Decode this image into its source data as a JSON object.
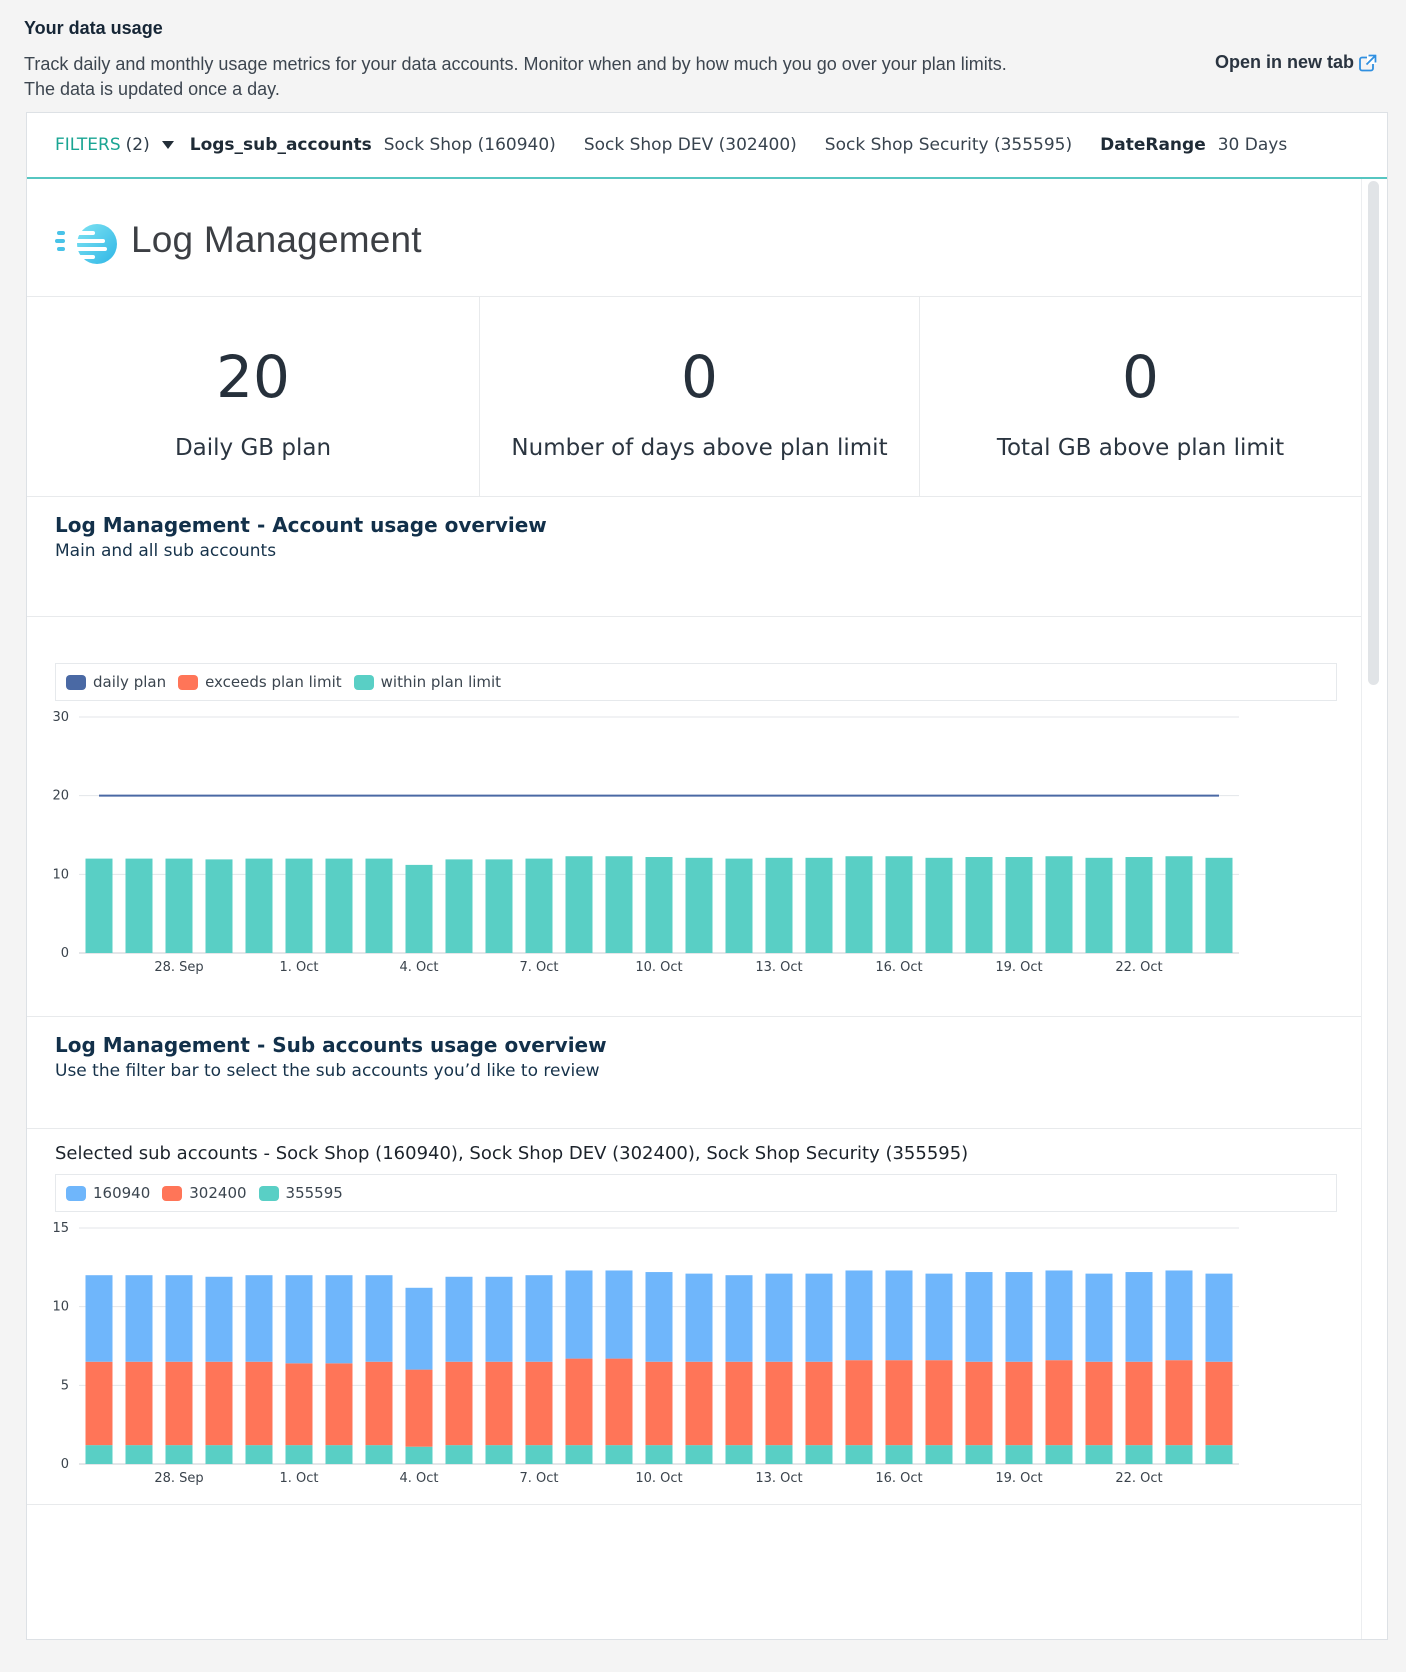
{
  "header": {
    "title": "Your data usage",
    "desc_line1": "Track daily and monthly usage metrics for your data accounts. Monitor when and by how much you go over your plan limits.",
    "desc_line2": "The data is updated once a day.",
    "open_tab": "Open in new tab"
  },
  "filters": {
    "label": "FILTERS",
    "count": "(2)",
    "key_accounts": "Logs_sub_accounts",
    "accounts": [
      "Sock Shop (160940)",
      "Sock Shop DEV (302400)",
      "Sock Shop Security (355595)"
    ],
    "key_date": "DateRange",
    "date_value": "30 Days"
  },
  "brand": {
    "name": "Log Management"
  },
  "kpis": [
    {
      "value": "20",
      "label": "Daily GB plan"
    },
    {
      "value": "0",
      "label": "Number of days above plan limit"
    },
    {
      "value": "0",
      "label": "Total GB above plan limit"
    }
  ],
  "sections": {
    "overview_title": "Log Management - Account usage overview",
    "overview_sub": "Main and all sub accounts",
    "sub_title": "Log Management - Sub accounts usage overview",
    "sub_sub": "Use the filter bar to select the sub accounts you’d like to review"
  },
  "colors": {
    "accent": "#1aa593",
    "daily_plan": "#4a69a4",
    "exceeds": "#ff7558",
    "within": "#59cfc5",
    "acct_160940": "#6fb6fb",
    "acct_302400": "#ff7558",
    "acct_355595": "#59cfc5"
  },
  "chart_data": [
    {
      "type": "bar",
      "legend": [
        "daily plan",
        "exceeds plan limit",
        "within plan limit"
      ],
      "ylim": [
        0,
        30
      ],
      "yticks": [
        "0",
        "10",
        "20",
        "30"
      ],
      "xtick_labels": [
        "28. Sep",
        "1. Oct",
        "4. Oct",
        "7. Oct",
        "10. Oct",
        "13. Oct",
        "16. Oct",
        "19. Oct",
        "22. Oct"
      ],
      "xtick_index": [
        2,
        5,
        8,
        11,
        14,
        17,
        20,
        23,
        26
      ],
      "daily_plan": 20,
      "series": [
        {
          "name": "within plan limit",
          "values": [
            12.0,
            12.0,
            12.0,
            11.9,
            12.0,
            12.0,
            12.0,
            12.0,
            11.2,
            11.9,
            11.9,
            12.0,
            12.3,
            12.3,
            12.2,
            12.1,
            12.0,
            12.1,
            12.1,
            12.3,
            12.3,
            12.1,
            12.2,
            12.2,
            12.3,
            12.1,
            12.2,
            12.3,
            12.1
          ]
        },
        {
          "name": "exceeds plan limit",
          "values": [
            0,
            0,
            0,
            0,
            0,
            0,
            0,
            0,
            0,
            0,
            0,
            0,
            0,
            0,
            0,
            0,
            0,
            0,
            0,
            0,
            0,
            0,
            0,
            0,
            0,
            0,
            0,
            0,
            0
          ]
        }
      ]
    },
    {
      "type": "bar",
      "title": "Selected sub accounts - Sock Shop (160940), Sock Shop DEV (302400), Sock Shop Security (355595)",
      "legend": [
        "160940",
        "302400",
        "355595"
      ],
      "ylim": [
        0,
        15
      ],
      "yticks": [
        "0",
        "5",
        "10",
        "15"
      ],
      "xtick_labels": [
        "28. Sep",
        "1. Oct",
        "4. Oct",
        "7. Oct",
        "10. Oct",
        "13. Oct",
        "16. Oct",
        "19. Oct",
        "22. Oct"
      ],
      "xtick_index": [
        2,
        5,
        8,
        11,
        14,
        17,
        20,
        23,
        26
      ],
      "series": [
        {
          "name": "355595",
          "values": [
            1.2,
            1.2,
            1.2,
            1.2,
            1.2,
            1.2,
            1.2,
            1.2,
            1.1,
            1.2,
            1.2,
            1.2,
            1.2,
            1.2,
            1.2,
            1.2,
            1.2,
            1.2,
            1.2,
            1.2,
            1.2,
            1.2,
            1.2,
            1.2,
            1.2,
            1.2,
            1.2,
            1.2,
            1.2
          ]
        },
        {
          "name": "302400",
          "values": [
            5.3,
            5.3,
            5.3,
            5.3,
            5.3,
            5.2,
            5.2,
            5.3,
            4.9,
            5.3,
            5.3,
            5.3,
            5.5,
            5.5,
            5.3,
            5.3,
            5.3,
            5.3,
            5.3,
            5.4,
            5.4,
            5.4,
            5.3,
            5.3,
            5.4,
            5.3,
            5.3,
            5.4,
            5.3
          ]
        },
        {
          "name": "160940",
          "values": [
            5.5,
            5.5,
            5.5,
            5.4,
            5.5,
            5.6,
            5.6,
            5.5,
            5.2,
            5.4,
            5.4,
            5.5,
            5.6,
            5.6,
            5.7,
            5.6,
            5.5,
            5.6,
            5.6,
            5.7,
            5.7,
            5.5,
            5.7,
            5.7,
            5.7,
            5.6,
            5.7,
            5.7,
            5.6
          ]
        }
      ]
    }
  ]
}
